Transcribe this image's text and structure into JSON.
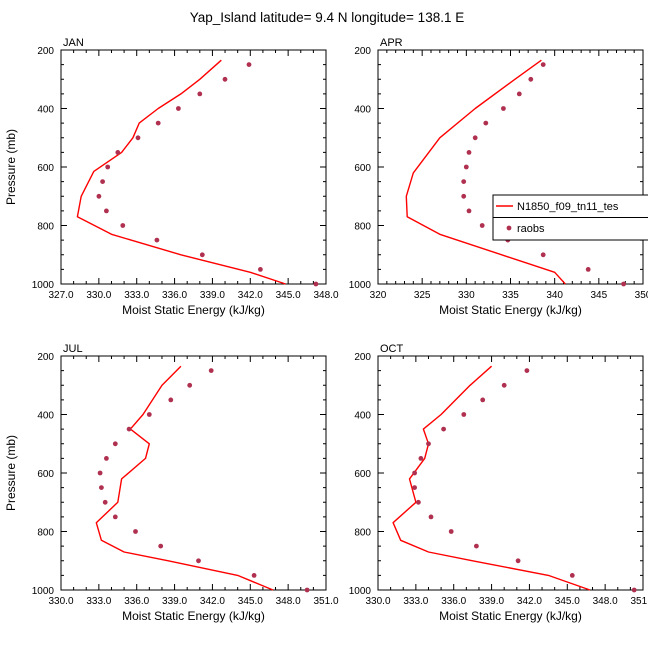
{
  "figure_title": "Yap_Island  latitude= 9.4 N longitude= 138.1 E",
  "colors": {
    "model": "#ff0000",
    "obs": "#b03050",
    "axis": "#000000"
  },
  "legend": {
    "model_label": "N1850_f09_tn11_tes",
    "obs_label": "raobs"
  },
  "chart_data": [
    {
      "type": "line",
      "panel": "JAN",
      "title": "JAN",
      "xlabel": "Moist Static Energy (kJ/kg)",
      "ylabel": "Pressure (mb)",
      "xlim": [
        327,
        348
      ],
      "ylim": [
        1000,
        200
      ],
      "xticks": [
        327,
        330,
        333,
        336,
        339,
        342,
        345,
        348
      ],
      "xtick_labels": [
        "327.0",
        "330.0",
        "333.0",
        "336.0",
        "339.0",
        "342.0",
        "345.0",
        "348.0"
      ],
      "yticks": [
        200,
        400,
        600,
        800,
        1000
      ],
      "ytick_labels": [
        "200",
        "400",
        "600",
        "800",
        "1000"
      ],
      "series": [
        {
          "name": "N1850_f09_tn11_tes",
          "kind": "line",
          "pressure": [
            235,
            300,
            350,
            400,
            450,
            500,
            550,
            615,
            700,
            770,
            830,
            900,
            960,
            1000
          ],
          "values": [
            339.7,
            338.0,
            336.5,
            334.7,
            333.2,
            332.7,
            331.8,
            329.6,
            328.6,
            328.3,
            331.0,
            336.5,
            342.0,
            344.8
          ]
        },
        {
          "name": "raobs",
          "kind": "scatter",
          "pressure": [
            250,
            300,
            350,
            400,
            450,
            500,
            550,
            600,
            650,
            700,
            750,
            800,
            850,
            900,
            950,
            1000
          ],
          "values": [
            341.9,
            340.0,
            338.0,
            336.3,
            334.7,
            333.1,
            331.5,
            330.7,
            330.3,
            330.0,
            330.6,
            331.9,
            334.6,
            338.2,
            342.8,
            347.2
          ]
        }
      ]
    },
    {
      "type": "line",
      "panel": "APR",
      "title": "APR",
      "xlabel": "Moist Static Energy (kJ/kg)",
      "ylabel": "",
      "xlim": [
        320,
        350
      ],
      "ylim": [
        1000,
        200
      ],
      "xticks": [
        320,
        325,
        330,
        335,
        340,
        345,
        350
      ],
      "xtick_labels": [
        "320",
        "325",
        "330",
        "335",
        "340",
        "345",
        "350"
      ],
      "yticks": [
        200,
        400,
        600,
        800,
        1000
      ],
      "ytick_labels": [
        "200",
        "400",
        "600",
        "800",
        "1000"
      ],
      "series": [
        {
          "name": "N1850_f09_tn11_tes",
          "kind": "line",
          "pressure": [
            235,
            300,
            400,
            500,
            620,
            700,
            770,
            830,
            900,
            960,
            1000
          ],
          "values": [
            338.5,
            335.5,
            331.0,
            327.0,
            324.0,
            323.2,
            323.3,
            327.0,
            334.0,
            340.0,
            341.2
          ]
        },
        {
          "name": "raobs",
          "kind": "scatter",
          "pressure": [
            250,
            300,
            350,
            400,
            450,
            500,
            550,
            600,
            650,
            700,
            750,
            800,
            850,
            900,
            950,
            1000
          ],
          "values": [
            338.7,
            337.3,
            336.0,
            334.2,
            332.2,
            331.0,
            330.3,
            330.0,
            329.7,
            329.7,
            330.3,
            331.8,
            334.7,
            338.7,
            343.8,
            347.8
          ]
        }
      ]
    },
    {
      "type": "line",
      "panel": "JUL",
      "title": "JUL",
      "xlabel": "Moist Static Energy (kJ/kg)",
      "ylabel": "Pressure (mb)",
      "xlim": [
        330,
        351
      ],
      "ylim": [
        1000,
        200
      ],
      "xticks": [
        330,
        333,
        336,
        339,
        342,
        345,
        348,
        351
      ],
      "xtick_labels": [
        "330.0",
        "333.0",
        "336.0",
        "339.0",
        "342.0",
        "345.0",
        "348.0",
        "351.0"
      ],
      "yticks": [
        200,
        400,
        600,
        800,
        1000
      ],
      "ytick_labels": [
        "200",
        "400",
        "600",
        "800",
        "1000"
      ],
      "series": [
        {
          "name": "N1850_f09_tn11_tes",
          "kind": "line",
          "pressure": [
            235,
            300,
            400,
            450,
            500,
            550,
            620,
            700,
            770,
            830,
            870,
            900,
            950,
            1000
          ],
          "values": [
            339.5,
            338.0,
            336.5,
            335.5,
            337.0,
            336.7,
            334.8,
            334.5,
            332.8,
            333.2,
            335.0,
            338.5,
            344.0,
            346.8
          ]
        },
        {
          "name": "raobs",
          "kind": "scatter",
          "pressure": [
            250,
            300,
            350,
            400,
            450,
            500,
            550,
            600,
            650,
            700,
            750,
            800,
            850,
            900,
            950,
            1000
          ],
          "values": [
            341.9,
            340.2,
            338.7,
            337.0,
            335.4,
            334.3,
            333.6,
            333.1,
            333.2,
            333.5,
            334.3,
            335.9,
            337.9,
            340.9,
            345.3,
            349.5
          ]
        }
      ]
    },
    {
      "type": "line",
      "panel": "OCT",
      "title": "OCT",
      "xlabel": "Moist Static Energy (kJ/kg)",
      "ylabel": "",
      "xlim": [
        330,
        351
      ],
      "ylim": [
        1000,
        200
      ],
      "xticks": [
        330,
        333,
        336,
        339,
        342,
        345,
        348,
        351
      ],
      "xtick_labels": [
        "330.0",
        "333.0",
        "336.0",
        "339.0",
        "342.0",
        "345.0",
        "348.0",
        "351.0"
      ],
      "yticks": [
        200,
        400,
        600,
        800,
        1000
      ],
      "ytick_labels": [
        "200",
        "400",
        "600",
        "800",
        "1000"
      ],
      "series": [
        {
          "name": "N1850_f09_tn11_tes",
          "kind": "line",
          "pressure": [
            235,
            300,
            400,
            450,
            500,
            550,
            620,
            700,
            770,
            830,
            870,
            900,
            950,
            1000
          ],
          "values": [
            339.0,
            337.3,
            335.0,
            333.6,
            334.0,
            333.7,
            332.5,
            333.0,
            331.2,
            331.8,
            334.0,
            337.5,
            343.5,
            346.8
          ]
        },
        {
          "name": "raobs",
          "kind": "scatter",
          "pressure": [
            250,
            300,
            350,
            400,
            450,
            500,
            550,
            600,
            650,
            700,
            750,
            800,
            850,
            900,
            950,
            1000
          ],
          "values": [
            341.8,
            340.0,
            338.3,
            336.8,
            335.2,
            334.0,
            333.4,
            332.9,
            332.9,
            333.2,
            334.2,
            335.8,
            337.8,
            341.1,
            345.4,
            350.3
          ]
        }
      ]
    }
  ]
}
